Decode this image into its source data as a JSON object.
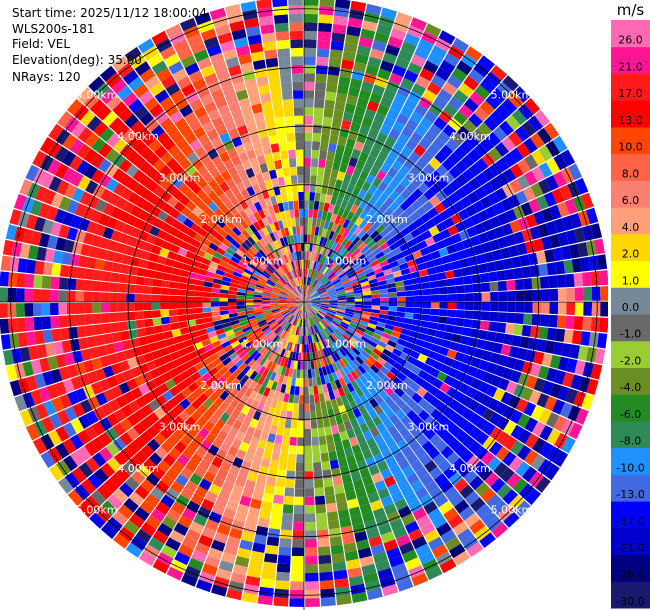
{
  "header": {
    "start_time": "Start time: 2025/11/12 18:00:04",
    "instrument": "WLS200s-181",
    "field": "Field: VEL",
    "elevation": "Elevation(deg): 35.00",
    "nrays": "NRays: 120"
  },
  "chart_data": {
    "type": "heatmap",
    "projection": "polar",
    "field": "VEL",
    "elevation_deg": 35.0,
    "n_rays": 120,
    "range_rings_km": [
      1.0,
      2.0,
      3.0,
      4.0,
      5.0
    ],
    "ring_labels": [
      "1.00km",
      "2.00km",
      "3.00km",
      "4.00km",
      "5.00km"
    ],
    "colorbar": {
      "unit": "m/s",
      "levels": [
        -30.0,
        -26.0,
        -21.0,
        -17.0,
        -13.0,
        -10.0,
        -8.0,
        -6.0,
        -4.0,
        -2.0,
        -1.0,
        0.0,
        1.0,
        2.0,
        4.0,
        6.0,
        8.0,
        10.0,
        13.0,
        17.0,
        21.0,
        26.0,
        30.0
      ],
      "tick_labels": [
        "-30.0",
        "-26.0",
        "-21.0",
        "-17.0",
        "-13.0",
        "-10.0",
        "-8.0",
        "-6.0",
        "-4.0",
        "-2.0",
        "-1.0",
        "0.0",
        "1.0",
        "2.0",
        "4.0",
        "6.0",
        "8.0",
        "10.0",
        "13.0",
        "17.0",
        "21.0",
        "26.0"
      ],
      "colors": [
        "#191970",
        "#000080",
        "#0000cd",
        "#0000ff",
        "#4169e1",
        "#1e90ff",
        "#2e8b57",
        "#228b22",
        "#6b8e23",
        "#9acd32",
        "#696969",
        "#778899",
        "#ffff00",
        "#ffd700",
        "#ffa07a",
        "#fa8072",
        "#ff6347",
        "#ff4500",
        "#ff0000",
        "#ff1a1a",
        "#ff1493",
        "#ff69b4"
      ]
    }
  }
}
